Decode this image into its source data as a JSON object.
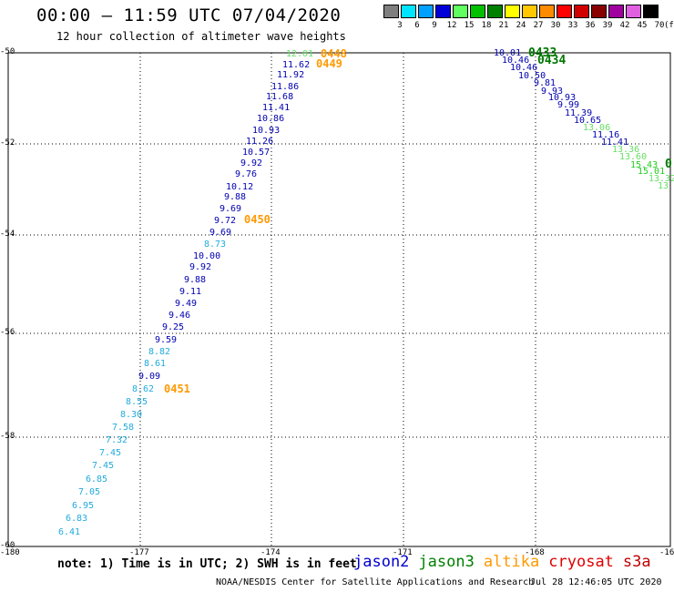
{
  "title": "00:00 – 11:59 UTC 07/04/2020",
  "subtitle": "12 hour collection of altimeter wave heights",
  "colorbar": {
    "unit": "(ft)",
    "labels": [
      "3",
      "6",
      "9",
      "12",
      "15",
      "18",
      "21",
      "24",
      "27",
      "30",
      "33",
      "36",
      "39",
      "42",
      "45",
      "70"
    ],
    "colors": [
      "#7f7f7f",
      "#00e5ff",
      "#00a0ff",
      "#0000d8",
      "#60ff60",
      "#00c000",
      "#008000",
      "#ffff00",
      "#ffc800",
      "#ff8c00",
      "#ff0000",
      "#d00000",
      "#880000",
      "#a000a0",
      "#e060e0",
      "#000000"
    ]
  },
  "axes": {
    "y_ticks": [
      "-50",
      "-52",
      "-54",
      "-56",
      "-58",
      "-60"
    ],
    "x_ticks": [
      "-180",
      "-177",
      "-174",
      "-171",
      "-168",
      "-16"
    ]
  },
  "tracks": {
    "track1_values": [
      "12.01",
      "11.62",
      "11.92",
      "11.86",
      "11.68",
      "11.41",
      "10.86",
      "10.93",
      "11.26",
      "10.57",
      "9.92",
      "9.76",
      "10.12",
      "9.88",
      "9.69",
      "9.72",
      "9.69",
      "8.73",
      "10.00",
      "9.92",
      "9.88",
      "9.11",
      "9.49",
      "9.46",
      "9.25",
      "9.59",
      "8.82",
      "8.61",
      "9.09",
      "8.62",
      "8.55",
      "8.30",
      "7.58",
      "7.32",
      "7.45",
      "7.45",
      "6.85",
      "7.05",
      "6.95",
      "6.83",
      "6.41"
    ],
    "track1_times": [
      "0448",
      "0449",
      "0450",
      "0451"
    ],
    "track2_values": [
      "10.01",
      "10.46",
      "10.46",
      "10.50",
      "9.81",
      "9.93",
      "10.93",
      "9.99",
      "11.39",
      "10.65",
      "13.06",
      "11.16",
      "11.41",
      "13.36",
      "13.60",
      "15.43",
      "15.01",
      "13.32",
      "13"
    ],
    "track2_times": [
      "0433",
      "0434",
      "0"
    ]
  },
  "note": "note: 1) Time is in UTC; 2) SWH is in feet",
  "legend": [
    {
      "label": "jason2",
      "color": "#0000d0"
    },
    {
      "label": "jason3",
      "color": "#008000"
    },
    {
      "label": "altika",
      "color": "#ff9900"
    },
    {
      "label": "cryosat",
      "color": "#e00000"
    },
    {
      "label": "s3a",
      "color": "#c00000"
    }
  ],
  "credit": "NOAA/NESDIS Center for Satellite Applications and Research",
  "datestamp": "Jul 28 12:46:05 UTC 2020"
}
